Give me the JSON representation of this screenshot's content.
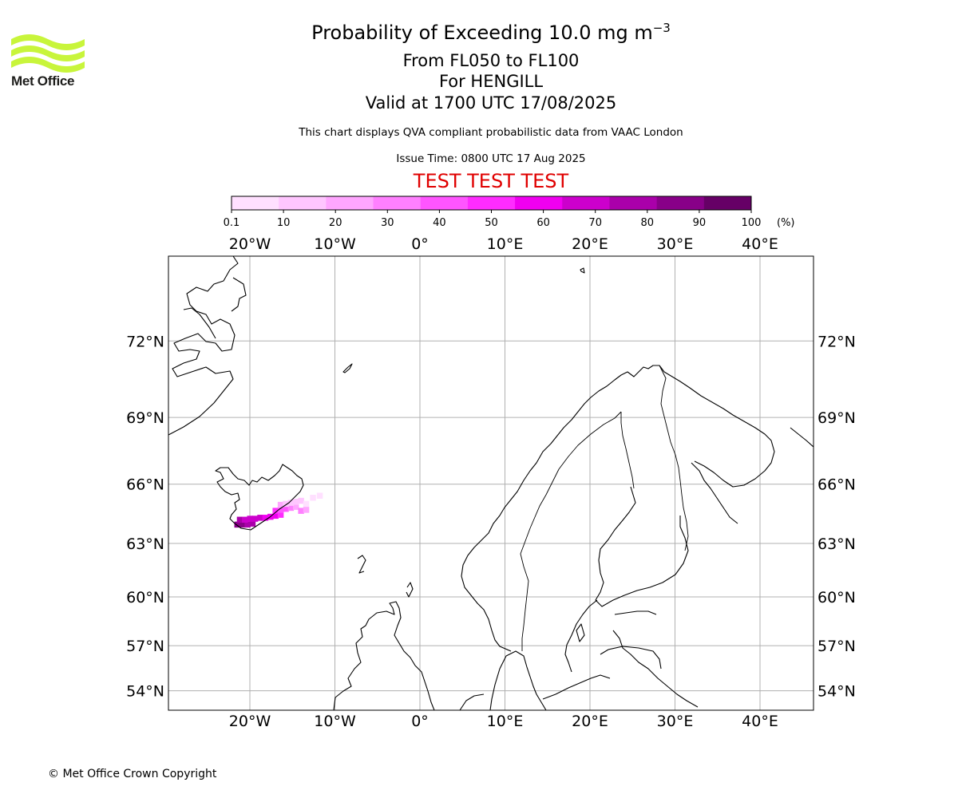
{
  "logo": {
    "text": "Met Office",
    "color": "#c8f53b"
  },
  "title": {
    "line1_main": "Probability of Exceeding 10.0 mg m",
    "line1_sup": "−3",
    "line2": "From FL050 to FL100",
    "line3": "For HENGILL",
    "line4": "Valid at 1700 UTC 17/08/2025"
  },
  "subtitle": "This chart displays QVA compliant probabilistic data from VAAC London",
  "issue_time": "Issue Time: 0800 UTC 17 Aug 2025",
  "test_banner": "TEST TEST TEST",
  "colorbar": {
    "tick_labels": [
      "0.1",
      "10",
      "20",
      "30",
      "40",
      "50",
      "60",
      "70",
      "80",
      "90",
      "100"
    ],
    "unit": "(%)",
    "colors": [
      "#ffe0ff",
      "#ffc6ff",
      "#ffa6ff",
      "#ff80ff",
      "#ff55ff",
      "#ff2cff",
      "#f000f0",
      "#cc00cc",
      "#aa00aa",
      "#880088",
      "#660066"
    ]
  },
  "map": {
    "lon_labels": [
      "20°W",
      "10°W",
      "0°",
      "10°E",
      "20°E",
      "30°E",
      "40°E"
    ],
    "lat_labels": [
      "72°N",
      "69°N",
      "66°N",
      "63°N",
      "60°N",
      "57°N",
      "54°N"
    ],
    "lon_values": [
      -20,
      -10,
      0,
      10,
      20,
      30,
      40
    ],
    "lat_values": [
      72,
      69,
      66,
      63,
      60,
      57,
      54
    ],
    "gridline_color": "#b0b0b0"
  },
  "plume_data": {
    "cells": [
      {
        "lon": -21.5,
        "lat": 64.0,
        "p": 95
      },
      {
        "lon": -20.9,
        "lat": 64.0,
        "p": 92
      },
      {
        "lon": -20.3,
        "lat": 64.0,
        "p": 88
      },
      {
        "lon": -19.7,
        "lat": 64.05,
        "p": 85
      },
      {
        "lon": -21.2,
        "lat": 64.25,
        "p": 80
      },
      {
        "lon": -20.6,
        "lat": 64.25,
        "p": 78
      },
      {
        "lon": -20.0,
        "lat": 64.3,
        "p": 75
      },
      {
        "lon": -19.4,
        "lat": 64.3,
        "p": 72
      },
      {
        "lon": -18.8,
        "lat": 64.35,
        "p": 70
      },
      {
        "lon": -18.2,
        "lat": 64.35,
        "p": 68
      },
      {
        "lon": -17.6,
        "lat": 64.4,
        "p": 65
      },
      {
        "lon": -17.0,
        "lat": 64.45,
        "p": 62
      },
      {
        "lon": -16.4,
        "lat": 64.5,
        "p": 58
      },
      {
        "lon": -17.0,
        "lat": 64.7,
        "p": 50
      },
      {
        "lon": -16.4,
        "lat": 64.75,
        "p": 45
      },
      {
        "lon": -15.8,
        "lat": 64.8,
        "p": 40
      },
      {
        "lon": -15.2,
        "lat": 64.85,
        "p": 32
      },
      {
        "lon": -14.6,
        "lat": 64.9,
        "p": 25
      },
      {
        "lon": -16.4,
        "lat": 65.0,
        "p": 20
      },
      {
        "lon": -15.8,
        "lat": 65.05,
        "p": 18
      },
      {
        "lon": -15.2,
        "lat": 65.1,
        "p": 15
      },
      {
        "lon": -14.6,
        "lat": 65.15,
        "p": 12
      },
      {
        "lon": -14.0,
        "lat": 65.2,
        "p": 10
      },
      {
        "lon": -13.4,
        "lat": 65.05,
        "p": 8
      },
      {
        "lon": -12.6,
        "lat": 65.35,
        "p": 5
      },
      {
        "lon": -11.8,
        "lat": 65.45,
        "p": 3
      },
      {
        "lon": -14.0,
        "lat": 64.7,
        "p": 30
      },
      {
        "lon": -13.4,
        "lat": 64.75,
        "p": 22
      }
    ]
  },
  "copyright": "© Met Office Crown Copyright"
}
